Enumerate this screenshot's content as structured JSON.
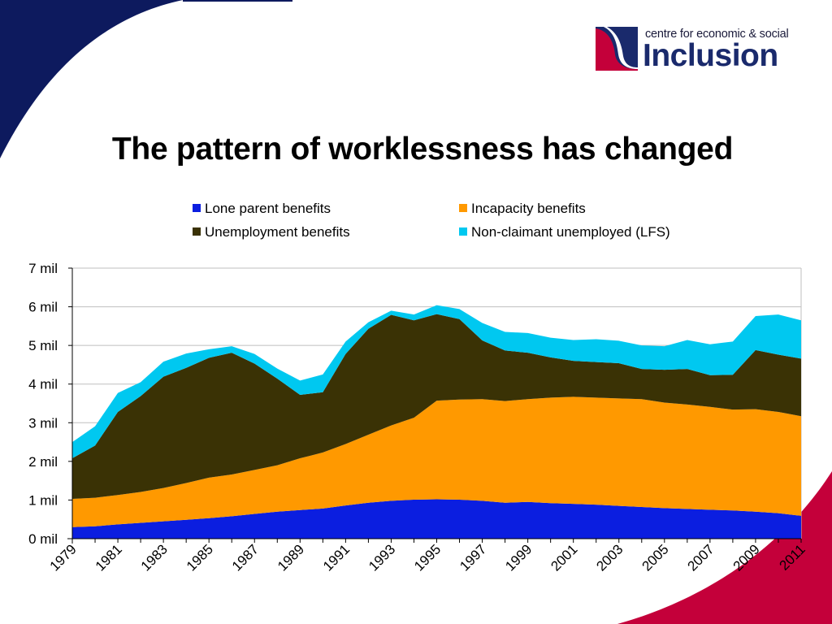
{
  "logo": {
    "small_text": "centre for economic & social",
    "big_text": "Inclusion"
  },
  "slide": {
    "title": "The pattern of worklessness has changed"
  },
  "colors": {
    "lone_parent": "#0b1ee0",
    "incapacity": "#ff9900",
    "unemployment": "#3a3205",
    "non_claimant": "#00c8f0",
    "corner_navy": "#0d1a5e",
    "corner_red": "#c4003a"
  },
  "chart_data": {
    "type": "area",
    "stacked": true,
    "title": "The pattern of worklessness has changed",
    "x": [
      1979,
      1980,
      1981,
      1982,
      1983,
      1984,
      1985,
      1986,
      1987,
      1988,
      1989,
      1990,
      1991,
      1992,
      1993,
      1994,
      1995,
      1996,
      1997,
      1998,
      1999,
      2000,
      2001,
      2002,
      2003,
      2004,
      2005,
      2006,
      2007,
      2008,
      2009,
      2010,
      2011
    ],
    "x_tick_labels": [
      "1979",
      "1981",
      "1983",
      "1985",
      "1987",
      "1989",
      "1991",
      "1993",
      "1995",
      "1997",
      "1999",
      "2001",
      "2003",
      "2005",
      "2007",
      "2009",
      "2011"
    ],
    "y_tick_labels": [
      "0 mil",
      "1 mil",
      "2 mil",
      "3 mil",
      "4 mil",
      "5 mil",
      "6 mil",
      "7 mil"
    ],
    "ylim": [
      0,
      7
    ],
    "unit": "millions",
    "grid": true,
    "legend_position": "top",
    "series": [
      {
        "name": "Lone parent benefits",
        "color": "#0b1ee0",
        "values": [
          0.3,
          0.32,
          0.37,
          0.41,
          0.45,
          0.49,
          0.53,
          0.58,
          0.64,
          0.7,
          0.74,
          0.78,
          0.86,
          0.93,
          0.98,
          1.01,
          1.02,
          1.01,
          0.98,
          0.93,
          0.95,
          0.92,
          0.9,
          0.88,
          0.85,
          0.82,
          0.79,
          0.77,
          0.75,
          0.73,
          0.7,
          0.66,
          0.59
        ]
      },
      {
        "name": "Incapacity benefits",
        "color": "#ff9900",
        "values": [
          0.73,
          0.74,
          0.76,
          0.8,
          0.86,
          0.95,
          1.05,
          1.08,
          1.14,
          1.2,
          1.34,
          1.45,
          1.59,
          1.76,
          1.95,
          2.12,
          2.55,
          2.59,
          2.63,
          2.63,
          2.66,
          2.73,
          2.77,
          2.77,
          2.78,
          2.79,
          2.73,
          2.7,
          2.66,
          2.61,
          2.65,
          2.62,
          2.58
        ]
      },
      {
        "name": "Unemployment benefits",
        "color": "#3a3205",
        "values": [
          1.05,
          1.35,
          2.15,
          2.48,
          2.88,
          2.98,
          3.1,
          3.15,
          2.75,
          2.24,
          1.64,
          1.56,
          2.33,
          2.74,
          2.86,
          2.52,
          2.24,
          2.08,
          1.52,
          1.31,
          1.2,
          1.04,
          0.93,
          0.92,
          0.91,
          0.78,
          0.85,
          0.92,
          0.82,
          0.9,
          1.53,
          1.48,
          1.49
        ]
      },
      {
        "name": "Non-claimant unemployed (LFS)",
        "color": "#00c8f0",
        "values": [
          0.42,
          0.5,
          0.49,
          0.36,
          0.39,
          0.37,
          0.22,
          0.17,
          0.25,
          0.26,
          0.37,
          0.46,
          0.32,
          0.17,
          0.11,
          0.15,
          0.23,
          0.26,
          0.45,
          0.48,
          0.51,
          0.51,
          0.54,
          0.59,
          0.58,
          0.61,
          0.61,
          0.75,
          0.8,
          0.86,
          0.88,
          1.04,
          0.99
        ]
      }
    ]
  }
}
